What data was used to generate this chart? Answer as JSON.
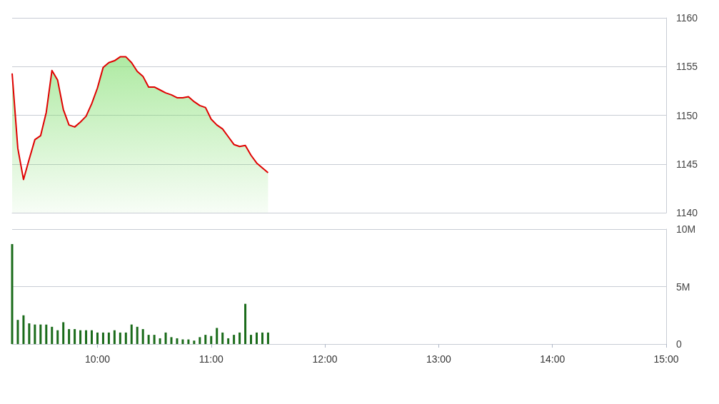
{
  "chart_data": [
    {
      "type": "area",
      "x": [
        9.25,
        9.3,
        9.35,
        9.4,
        9.45,
        9.5,
        9.55,
        9.6,
        9.65,
        9.7,
        9.75,
        9.8,
        9.85,
        9.9,
        9.95,
        10,
        10.05,
        10.1,
        10.15,
        10.2,
        10.25,
        10.3,
        10.35,
        10.4,
        10.45,
        10.5,
        10.55,
        10.6,
        10.65,
        10.7,
        10.75,
        10.8,
        10.85,
        10.9,
        10.95,
        11,
        11.05,
        11.1,
        11.15,
        11.2,
        11.25,
        11.3,
        11.35,
        11.4,
        11.45,
        11.5
      ],
      "xlim": [
        9.25,
        15
      ],
      "ylim": [
        1140,
        1160
      ],
      "yticks": [
        1140,
        1145,
        1150,
        1155,
        1160
      ],
      "grid": "y",
      "tick_labels": "y",
      "series": [
        {
          "color": "#e00000",
          "values": [
            1154.3,
            1146.6,
            1143.4,
            1145.5,
            1147.5,
            1147.9,
            1150.3,
            1154.6,
            1153.6,
            1150.6,
            1149.0,
            1148.8,
            1149.3,
            1149.9,
            1151.2,
            1152.8,
            1154.9,
            1155.4,
            1155.6,
            1156.0,
            1156.0,
            1155.4,
            1154.5,
            1154.0,
            1152.9,
            1152.9,
            1152.6,
            1152.3,
            1152.1,
            1151.8,
            1151.8,
            1151.9,
            1151.4,
            1151.0,
            1150.8,
            1149.6,
            1149.0,
            1148.6,
            1147.8,
            1147.0,
            1146.8,
            1146.9,
            1145.9,
            1145.1,
            1144.6,
            1144.1
          ]
        }
      ]
    },
    {
      "type": "bar",
      "x": [
        9.25,
        9.3,
        9.35,
        9.4,
        9.45,
        9.5,
        9.55,
        9.6,
        9.65,
        9.7,
        9.75,
        9.8,
        9.85,
        9.9,
        9.95,
        10,
        10.05,
        10.1,
        10.15,
        10.2,
        10.25,
        10.3,
        10.35,
        10.4,
        10.45,
        10.5,
        10.55,
        10.6,
        10.65,
        10.7,
        10.75,
        10.8,
        10.85,
        10.9,
        10.95,
        11,
        11.05,
        11.1,
        11.15,
        11.2,
        11.25,
        11.3,
        11.35,
        11.4,
        11.45,
        11.5
      ],
      "xlim": [
        9.25,
        15
      ],
      "xticks": [
        {
          "value": 10,
          "label": "10:00"
        },
        {
          "value": 11,
          "label": "11:00"
        },
        {
          "value": 12,
          "label": "12:00"
        },
        {
          "value": 13,
          "label": "13:00"
        },
        {
          "value": 14,
          "label": "14:00"
        },
        {
          "value": 15,
          "label": "15:00"
        }
      ],
      "ylim": [
        0,
        10
      ],
      "yticks": [
        0,
        {
          "value": 5,
          "label": "5M"
        },
        {
          "value": 10,
          "label": "10M"
        }
      ],
      "grid": "y",
      "series": [
        {
          "color": "#1a6b1a",
          "values": [
            8.7,
            2.1,
            2.5,
            1.8,
            1.7,
            1.7,
            1.7,
            1.5,
            1.2,
            1.9,
            1.3,
            1.3,
            1.2,
            1.2,
            1.2,
            1.0,
            1.0,
            1.0,
            1.2,
            1.0,
            1.0,
            1.7,
            1.5,
            1.3,
            0.8,
            0.8,
            0.5,
            1.0,
            0.6,
            0.5,
            0.4,
            0.4,
            0.3,
            0.6,
            0.8,
            0.7,
            1.4,
            1.0,
            0.5,
            0.8,
            1.0,
            3.5,
            0.8,
            1.0,
            1.0,
            1.0
          ]
        }
      ]
    }
  ]
}
